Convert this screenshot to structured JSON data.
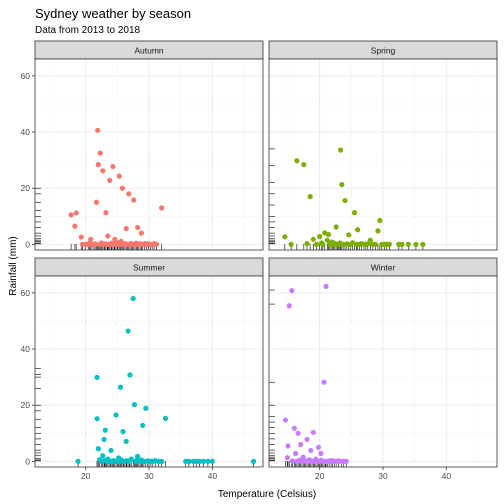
{
  "title": "Sydney weather by season",
  "subtitle": "Data from 2013 to 2018",
  "chart_data": {
    "type": "scatter",
    "title": "Sydney weather by season",
    "subtitle": "Data from 2013 to 2018",
    "xlabel": "Temperature (Celsius)",
    "ylabel": "Rainfall (mm)",
    "xlim": [
      12,
      48
    ],
    "ylim": [
      -2,
      66
    ],
    "xticks": [
      20,
      30,
      40
    ],
    "yticks": [
      0,
      20,
      40,
      60
    ],
    "grid": true,
    "rug": true,
    "legend": "none",
    "facets": [
      {
        "name": "Autumn",
        "color": "#F8766D",
        "points": [
          [
            17.7,
            10.5
          ],
          [
            18.3,
            6.5
          ],
          [
            18.5,
            11.2
          ],
          [
            19.3,
            2.6
          ],
          [
            19.5,
            0
          ],
          [
            20,
            0
          ],
          [
            20.4,
            0
          ],
          [
            20.6,
            0.4
          ],
          [
            20.8,
            1.8
          ],
          [
            21,
            0
          ],
          [
            21.3,
            0
          ],
          [
            21.5,
            0.2
          ],
          [
            21.7,
            15
          ],
          [
            21.9,
            40.6
          ],
          [
            22,
            28.4
          ],
          [
            22.2,
            0
          ],
          [
            22.3,
            32.5
          ],
          [
            22.5,
            0.5
          ],
          [
            22.7,
            26.2
          ],
          [
            22.9,
            0
          ],
          [
            23,
            0.2
          ],
          [
            23.2,
            11.3
          ],
          [
            23.4,
            0
          ],
          [
            23.5,
            3
          ],
          [
            23.6,
            0
          ],
          [
            23.8,
            22.8
          ],
          [
            24,
            0
          ],
          [
            24.1,
            0.4
          ],
          [
            24.3,
            27.7
          ],
          [
            24.5,
            0
          ],
          [
            24.6,
            1.8
          ],
          [
            24.8,
            0
          ],
          [
            25,
            0
          ],
          [
            25.1,
            0.6
          ],
          [
            25.3,
            24.3
          ],
          [
            25.5,
            0
          ],
          [
            25.6,
            1.1
          ],
          [
            25.8,
            20
          ],
          [
            26,
            0
          ],
          [
            26.2,
            0.3
          ],
          [
            26.4,
            5.6
          ],
          [
            26.6,
            0
          ],
          [
            26.8,
            18
          ],
          [
            27,
            0
          ],
          [
            27.2,
            0.3
          ],
          [
            27.4,
            0
          ],
          [
            27.6,
            15.8
          ],
          [
            27.8,
            0
          ],
          [
            28,
            0.4
          ],
          [
            28.2,
            6
          ],
          [
            28.4,
            0
          ],
          [
            28.6,
            0.2
          ],
          [
            28.8,
            4
          ],
          [
            29,
            0
          ],
          [
            29.3,
            0.3
          ],
          [
            29.6,
            0
          ],
          [
            29.9,
            0.2
          ],
          [
            30.2,
            0
          ],
          [
            30.5,
            0
          ],
          [
            30.8,
            0.3
          ],
          [
            31.2,
            0
          ],
          [
            32,
            13
          ]
        ],
        "rug_y": [
          0.2,
          0.5,
          1,
          1.5,
          2,
          3,
          4,
          6,
          8,
          10,
          12,
          15,
          18,
          20
        ]
      },
      {
        "name": "Spring",
        "color": "#7CAE00",
        "points": [
          [
            14.5,
            2.7
          ],
          [
            15.5,
            0
          ],
          [
            16.4,
            29.8
          ],
          [
            17.5,
            28.4
          ],
          [
            18,
            0.3
          ],
          [
            18.5,
            17
          ],
          [
            19,
            1.8
          ],
          [
            19.5,
            0
          ],
          [
            20,
            2.8
          ],
          [
            20.3,
            0.5
          ],
          [
            20.5,
            0
          ],
          [
            20.8,
            4.1
          ],
          [
            21.2,
            1.5
          ],
          [
            21.4,
            3.5
          ],
          [
            21.6,
            0.2
          ],
          [
            21.8,
            0
          ],
          [
            22,
            0.8
          ],
          [
            22.2,
            0
          ],
          [
            22.4,
            0.3
          ],
          [
            22.6,
            6.2
          ],
          [
            22.8,
            0
          ],
          [
            23,
            0
          ],
          [
            23.2,
            0.5
          ],
          [
            23.3,
            33.6
          ],
          [
            23.5,
            21.3
          ],
          [
            23.7,
            0
          ],
          [
            24,
            15.6
          ],
          [
            24.3,
            0.2
          ],
          [
            24.6,
            3.4
          ],
          [
            24.9,
            0
          ],
          [
            25.2,
            0.6
          ],
          [
            25.5,
            11.3
          ],
          [
            25.8,
            0
          ],
          [
            26,
            5.2
          ],
          [
            26.3,
            0
          ],
          [
            26.6,
            0.3
          ],
          [
            27,
            0
          ],
          [
            27.3,
            0
          ],
          [
            27.6,
            0.2
          ],
          [
            28,
            1.5
          ],
          [
            28.4,
            0
          ],
          [
            28.8,
            0
          ],
          [
            29.2,
            4.8
          ],
          [
            29.5,
            8.5
          ],
          [
            29.8,
            0
          ],
          [
            30.2,
            0
          ],
          [
            30.6,
            0
          ],
          [
            31,
            0
          ],
          [
            32.5,
            0
          ],
          [
            33,
            0
          ],
          [
            34,
            0
          ],
          [
            35.2,
            0
          ],
          [
            36.3,
            0
          ]
        ],
        "rug_y": [
          0.2,
          0.5,
          1,
          1.5,
          2,
          3,
          4,
          6,
          8,
          10,
          14,
          18,
          22,
          28,
          34
        ]
      },
      {
        "name": "Summer",
        "color": "#00BFC4",
        "points": [
          [
            18.8,
            0
          ],
          [
            21.8,
            29.9
          ],
          [
            21.8,
            15.2
          ],
          [
            22,
            4.5
          ],
          [
            22.2,
            0.6
          ],
          [
            22.5,
            0
          ],
          [
            22.7,
            2
          ],
          [
            22.9,
            7.8
          ],
          [
            23,
            0.3
          ],
          [
            23.1,
            11.1
          ],
          [
            23.3,
            0
          ],
          [
            23.5,
            0.8
          ],
          [
            23.7,
            0
          ],
          [
            23.9,
            0
          ],
          [
            24,
            3.9
          ],
          [
            24.2,
            0
          ],
          [
            24.4,
            0.3
          ],
          [
            24.6,
            0
          ],
          [
            24.8,
            16.5
          ],
          [
            25,
            0
          ],
          [
            25.2,
            1.2
          ],
          [
            25.4,
            0
          ],
          [
            25.5,
            26.4
          ],
          [
            25.7,
            0.4
          ],
          [
            25.9,
            10.6
          ],
          [
            26,
            0
          ],
          [
            26.2,
            0
          ],
          [
            26.4,
            7.1
          ],
          [
            26.5,
            0.2
          ],
          [
            26.7,
            46.4
          ],
          [
            26.9,
            0
          ],
          [
            27,
            30.8
          ],
          [
            27.2,
            0.8
          ],
          [
            27.5,
            58
          ],
          [
            27.7,
            20.2
          ],
          [
            27.9,
            0
          ],
          [
            28,
            0.3
          ],
          [
            28.2,
            1.8
          ],
          [
            28.4,
            0
          ],
          [
            28.6,
            0
          ],
          [
            28.8,
            0.5
          ],
          [
            29,
            12.8
          ],
          [
            29.2,
            0
          ],
          [
            29.5,
            18.9
          ],
          [
            29.8,
            0.2
          ],
          [
            30,
            0
          ],
          [
            30.3,
            0
          ],
          [
            30.6,
            0
          ],
          [
            31,
            0.3
          ],
          [
            31.5,
            0
          ],
          [
            32,
            0
          ],
          [
            32.6,
            15.3
          ],
          [
            35.8,
            0
          ],
          [
            36.3,
            0
          ],
          [
            37,
            0
          ],
          [
            37.5,
            0
          ],
          [
            38,
            0
          ],
          [
            38.6,
            0
          ],
          [
            39.3,
            0
          ],
          [
            40,
            0
          ],
          [
            46.5,
            0
          ]
        ],
        "rug_y": [
          0.2,
          0.5,
          1,
          2,
          3,
          4,
          6,
          8,
          10,
          12,
          15,
          18,
          20,
          26,
          30,
          31,
          33
        ]
      },
      {
        "name": "Winter",
        "color": "#C77CFF",
        "points": [
          [
            14.6,
            14.7
          ],
          [
            14.9,
            1.3
          ],
          [
            15,
            5.5
          ],
          [
            15.2,
            55.4
          ],
          [
            15.6,
            60.8
          ],
          [
            15.7,
            0.2
          ],
          [
            16,
            11.8
          ],
          [
            16.2,
            2.8
          ],
          [
            16.4,
            0
          ],
          [
            16.6,
            10
          ],
          [
            16.8,
            0.4
          ],
          [
            17,
            6
          ],
          [
            17.2,
            0
          ],
          [
            17.4,
            1.5
          ],
          [
            17.6,
            0
          ],
          [
            17.8,
            0.2
          ],
          [
            18,
            7.8
          ],
          [
            18.2,
            0
          ],
          [
            18.4,
            0.6
          ],
          [
            18.6,
            3.9
          ],
          [
            18.8,
            0
          ],
          [
            19,
            10.3
          ],
          [
            19.2,
            0
          ],
          [
            19.4,
            0.8
          ],
          [
            19.6,
            0
          ],
          [
            19.8,
            5
          ],
          [
            20,
            0
          ],
          [
            20.2,
            2.8
          ],
          [
            20.3,
            0.4
          ],
          [
            20.5,
            0
          ],
          [
            20.7,
            28.2
          ],
          [
            20.9,
            0
          ],
          [
            21,
            62.3
          ],
          [
            21.2,
            0
          ],
          [
            21.5,
            0.2
          ],
          [
            21.8,
            0
          ],
          [
            22,
            0.3
          ],
          [
            22.3,
            0
          ],
          [
            22.6,
            0
          ],
          [
            23,
            0.2
          ],
          [
            23.4,
            0
          ],
          [
            23.8,
            0
          ],
          [
            24.2,
            0
          ]
        ],
        "rug_y": [
          0.2,
          0.5,
          1,
          1.5,
          2,
          3,
          4,
          6,
          8,
          10,
          12,
          14,
          16,
          20,
          28,
          56,
          61
        ]
      }
    ]
  }
}
